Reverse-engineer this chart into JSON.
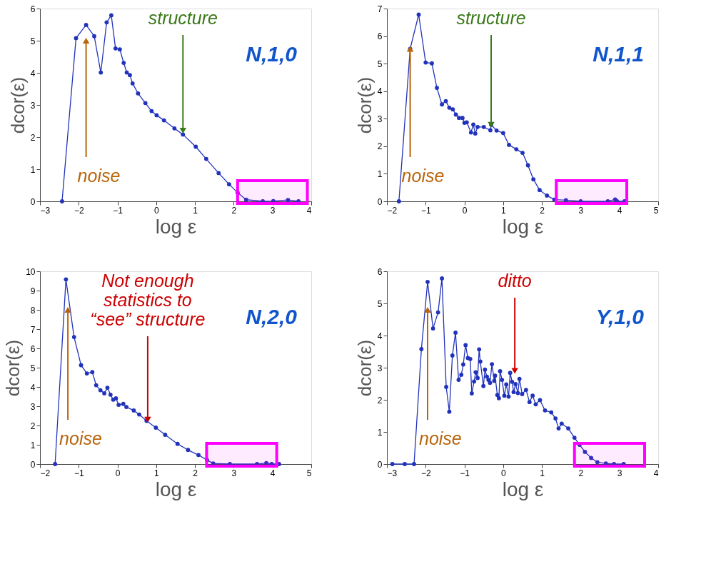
{
  "chart_data": [
    {
      "type": "line",
      "xlabel": "log ε",
      "ylabel": "dcor(ε)",
      "xlim": [
        -3,
        4
      ],
      "ylim": [
        0,
        6
      ],
      "xticks": [
        -3,
        -2,
        -1,
        0,
        1,
        2,
        3,
        4
      ],
      "yticks": [
        0,
        1,
        2,
        3,
        4,
        5,
        6
      ],
      "grid": false,
      "marker": "circle",
      "line_style": "solid",
      "series": [
        {
          "color": "#2233bb",
          "x": [
            -2.43,
            -2.07,
            -1.81,
            -1.6,
            -1.43,
            -1.28,
            -1.16,
            -1.05,
            -0.94,
            -0.84,
            -0.76,
            -0.68,
            -0.61,
            -0.47,
            -0.28,
            -0.12,
            0.01,
            0.2,
            0.47,
            0.69,
            1.02,
            1.29,
            1.61,
            1.88,
            2.1,
            2.32,
            2.75,
            3.02,
            3.4,
            3.67
          ],
          "values": [
            0,
            5.08,
            5.49,
            5.14,
            4.01,
            5.57,
            5.79,
            4.76,
            4.73,
            4.31,
            4.01,
            3.93,
            3.67,
            3.36,
            3.06,
            2.81,
            2.68,
            2.52,
            2.27,
            2.08,
            1.7,
            1.32,
            0.88,
            0.53,
            0.27,
            0.05,
            0,
            0.01,
            0.04,
            0
          ]
        }
      ],
      "bands": [
        {
          "axis": "x",
          "from": 2.1,
          "to": 3.9,
          "color": "#ff00ff"
        }
      ],
      "annotations": [
        "N,1,0",
        {
          "text": "noise",
          "x": -1.81,
          "y": 5.0
        },
        {
          "text": "structure",
          "x": 0.69,
          "y": 2.2
        }
      ]
    },
    {
      "type": "line",
      "xlabel": "log ε",
      "ylabel": "dcor(ε)",
      "xlim": [
        -2,
        5
      ],
      "ylim": [
        0,
        7
      ],
      "xticks": [
        -2,
        -1,
        0,
        1,
        2,
        3,
        4,
        5
      ],
      "yticks": [
        0,
        1,
        2,
        3,
        4,
        5,
        6,
        7
      ],
      "grid": false,
      "marker": "circle",
      "line_style": "solid",
      "series": [
        {
          "color": "#2233bb",
          "x": [
            -1.69,
            -1.4,
            -1.18,
            -1.0,
            -0.84,
            -0.71,
            -0.58,
            -0.48,
            -0.39,
            -0.3,
            -0.22,
            -0.14,
            -0.05,
            0.0,
            0.06,
            0.17,
            0.23,
            0.28,
            0.34,
            0.5,
            0.67,
            0.69,
            0.83,
            1.0,
            1.15,
            1.34,
            1.5,
            1.64,
            1.78,
            1.94,
            2.13,
            2.32,
            2.62,
            3.0,
            3.7,
            3.89,
            3.94,
            4.13
          ],
          "values": [
            0,
            5.54,
            6.78,
            5.04,
            5.01,
            4.12,
            3.52,
            3.64,
            3.4,
            3.34,
            3.15,
            3.03,
            3.03,
            2.85,
            2.87,
            2.5,
            2.79,
            2.46,
            2.7,
            2.7,
            2.58,
            2.78,
            2.57,
            2.48,
            2.05,
            1.89,
            1.76,
            1.31,
            0.8,
            0.41,
            0.21,
            0.06,
            0.04,
            0,
            0,
            0.07,
            0,
            0
          ]
        }
      ],
      "bands": [
        {
          "axis": "x",
          "from": 2.37,
          "to": 4.19,
          "color": "#ff00ff"
        }
      ],
      "annotations": [
        "N,1,1",
        {
          "text": "noise",
          "x": -1.4,
          "y": 5.54
        },
        {
          "text": "structure",
          "x": 0.69,
          "y": 2.78
        }
      ]
    },
    {
      "type": "line",
      "xlabel": "log ε",
      "ylabel": "dcor(ε)",
      "xlim": [
        -2,
        5
      ],
      "ylim": [
        0,
        10
      ],
      "xticks": [
        -2,
        -1,
        0,
        1,
        2,
        3,
        4,
        5
      ],
      "yticks": [
        0,
        1,
        2,
        3,
        4,
        5,
        6,
        7,
        8,
        9,
        10
      ],
      "grid": false,
      "marker": "circle",
      "line_style": "solid",
      "series": [
        {
          "color": "#2233bb",
          "x": [
            -1.61,
            -1.33,
            -1.12,
            -0.94,
            -0.79,
            -0.65,
            -0.55,
            -0.44,
            -0.34,
            -0.26,
            -0.18,
            -0.11,
            -0.04,
            0.03,
            0.15,
            0.23,
            0.42,
            0.56,
            0.75,
            0.99,
            1.23,
            1.55,
            1.82,
            2.09,
            2.31,
            2.47,
            2.9,
            3.6,
            3.84,
            3.98,
            4.17
          ],
          "values": [
            0,
            9.58,
            6.59,
            5.13,
            4.7,
            4.77,
            4.09,
            3.83,
            3.67,
            3.96,
            3.6,
            3.34,
            3.41,
            3.07,
            3.12,
            2.96,
            2.78,
            2.57,
            2.24,
            1.89,
            1.52,
            1.05,
            0.73,
            0.47,
            0.21,
            0.03,
            0,
            0,
            0.05,
            0,
            0
          ]
        }
      ],
      "bands": [
        {
          "axis": "x",
          "from": 2.3,
          "to": 4.11,
          "color": "#ff00ff"
        }
      ],
      "annotations": [
        "N,2,0",
        {
          "text": "noise",
          "x": -1.28,
          "y": 8.0
        },
        {
          "text": "Not enough\nstatistics to\n“see” structure",
          "x": 0.78,
          "y": 2.3
        }
      ]
    },
    {
      "type": "line",
      "xlabel": "log ε",
      "ylabel": "dcor(ε)",
      "xlim": [
        -3,
        4
      ],
      "ylim": [
        0,
        6
      ],
      "xticks": [
        -3,
        -2,
        -1,
        0,
        1,
        2,
        3,
        4
      ],
      "yticks": [
        0,
        1,
        2,
        3,
        4,
        5,
        6
      ],
      "grid": false,
      "marker": "circle",
      "line_style": "solid",
      "series": [
        {
          "color": "#2233bb",
          "x": [
            -2.86,
            -2.54,
            -2.3,
            -2.11,
            -1.95,
            -1.81,
            -1.68,
            -1.58,
            -1.47,
            -1.39,
            -1.31,
            -1.23,
            -1.15,
            -1.08,
            -1.03,
            -0.97,
            -0.91,
            -0.85,
            -0.81,
            -0.75,
            -0.71,
            -0.66,
            -0.62,
            -0.59,
            -0.51,
            -0.47,
            -0.42,
            -0.38,
            -0.34,
            -0.29,
            -0.23,
            -0.21,
            -0.15,
            -0.11,
            -0.08,
            -0.03,
            0.03,
            0.08,
            0.14,
            0.18,
            0.23,
            0.27,
            0.32,
            0.38,
            0.42,
            0.49,
            0.59,
            0.68,
            0.76,
            0.84,
            0.95,
            1.08,
            1.24,
            1.35,
            1.43,
            1.51,
            1.68,
            1.84,
            1.97,
            2.11,
            2.27,
            2.43,
            2.65,
            2.86,
            3.11
          ],
          "values": [
            0,
            0,
            0,
            3.58,
            5.67,
            4.22,
            4.72,
            5.78,
            2.4,
            1.63,
            3.38,
            4.09,
            2.62,
            2.78,
            3.1,
            3.7,
            3.3,
            3.27,
            2.2,
            2.57,
            2.86,
            2.68,
            3.57,
            3.19,
            2.43,
            2.94,
            2.72,
            2.62,
            2.53,
            3.11,
            2.59,
            2.75,
            2.15,
            2.05,
            2.89,
            2.62,
            2.13,
            2.48,
            2.1,
            2.84,
            2.56,
            2.24,
            2.49,
            2.21,
            2.65,
            2.18,
            2.31,
            1.93,
            2.13,
            1.86,
            1.99,
            1.67,
            1.61,
            1.42,
            1.11,
            1.26,
            1.11,
            0.82,
            0.6,
            0.38,
            0.19,
            0.06,
            0.02,
            0,
            0
          ]
        }
      ],
      "bands": [
        {
          "axis": "x",
          "from": 1.84,
          "to": 3.65,
          "color": "#ff00ff"
        }
      ],
      "annotations": [
        "Y,1,0",
        {
          "text": "noise",
          "x": -1.95,
          "y": 4.8
        },
        {
          "text": "ditto",
          "x": 0.3,
          "y": 2.9
        }
      ]
    }
  ]
}
